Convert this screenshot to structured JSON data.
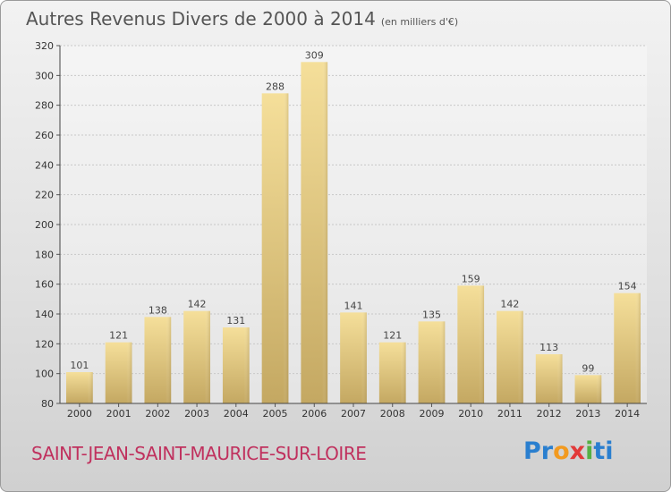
{
  "chart_data": {
    "type": "bar",
    "title": "Autres Revenus Divers de 2000 à 2014",
    "unit": "(en milliers d'€)",
    "categories": [
      "2000",
      "2001",
      "2002",
      "2003",
      "2004",
      "2005",
      "2006",
      "2007",
      "2008",
      "2009",
      "2010",
      "2011",
      "2012",
      "2013",
      "2014"
    ],
    "values": [
      101,
      121,
      138,
      142,
      131,
      288,
      309,
      141,
      121,
      135,
      159,
      142,
      113,
      99,
      154
    ],
    "ylim": [
      80,
      320
    ],
    "yticks": [
      80,
      100,
      120,
      140,
      160,
      180,
      200,
      220,
      240,
      260,
      280,
      300,
      320
    ],
    "grid": true
  },
  "footer": {
    "commune": "SAINT-JEAN-SAINT-MAURICE-SUR-LOIRE",
    "logo": [
      "Pr",
      "o",
      "x",
      "i",
      "ti"
    ]
  },
  "colors": {
    "bar_light": "#f5df9a",
    "bar_dark": "#c4a862",
    "commune": "#c0315e"
  }
}
